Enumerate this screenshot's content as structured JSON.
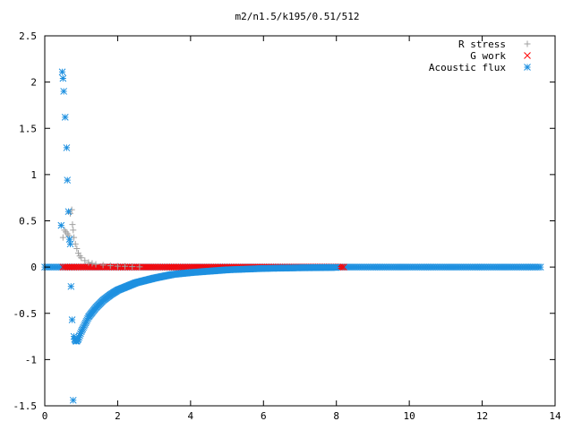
{
  "chart_data": {
    "type": "scatter",
    "title": "m2/n1.5/k195/0.51/512",
    "xlabel": "",
    "ylabel": "",
    "xlim": [
      0,
      14
    ],
    "ylim": [
      -1.5,
      2.5
    ],
    "x_ticks": [
      "0",
      "2",
      "4",
      "6",
      "8",
      "10",
      "12",
      "14"
    ],
    "y_ticks": [
      "2.5",
      "2",
      "1.5",
      "1",
      "0.5",
      "0",
      "-0.5",
      "-1",
      "-1.5"
    ],
    "grid": false,
    "legend_position": "top-right",
    "series": [
      {
        "name": "R stress",
        "marker": "plus",
        "color": "#a0a0a0",
        "x": [
          0.5,
          0.54,
          0.58,
          0.62,
          0.66,
          0.7,
          0.74,
          0.76,
          0.78,
          0.8,
          0.84,
          0.88,
          0.92,
          0.96,
          1.0,
          1.1,
          1.2,
          1.3,
          1.4,
          1.6,
          1.8,
          2.0,
          2.2,
          2.4,
          2.6
        ],
        "y": [
          0.32,
          0.4,
          0.38,
          0.36,
          0.34,
          0.58,
          0.62,
          0.46,
          0.4,
          0.32,
          0.25,
          0.2,
          0.15,
          0.12,
          0.1,
          0.07,
          0.05,
          0.04,
          0.03,
          0.02,
          0.015,
          0.01,
          0.008,
          0.005,
          0.003
        ]
      },
      {
        "name": "G work",
        "marker": "x",
        "color": "#ff0000",
        "x_range": [
          0.5,
          8.2
        ],
        "y": 0.0
      },
      {
        "name": "Acoustic flux",
        "marker": "star",
        "color": "#1e90e0",
        "x": [
          0.45,
          0.48,
          0.5,
          0.52,
          0.56,
          0.6,
          0.62,
          0.65,
          0.68,
          0.7,
          0.72,
          0.75,
          0.78,
          0.8,
          0.82,
          0.85,
          0.88,
          0.92,
          0.96,
          1.0,
          1.1,
          1.2,
          1.4,
          1.6,
          1.8,
          2.0,
          2.5,
          3.0,
          3.5,
          4.0,
          5.0,
          6.0,
          7.0,
          8.0
        ],
        "y": [
          0.45,
          2.11,
          2.04,
          1.9,
          1.62,
          1.29,
          0.94,
          0.6,
          0.3,
          0.25,
          -0.21,
          -0.57,
          -1.44,
          -0.75,
          -0.78,
          -0.8,
          -0.8,
          -0.78,
          -0.74,
          -0.7,
          -0.62,
          -0.54,
          -0.44,
          -0.36,
          -0.3,
          -0.25,
          -0.17,
          -0.12,
          -0.08,
          -0.06,
          -0.03,
          -0.015,
          -0.008,
          -0.004
        ],
        "flat_x_range": [
          0.0,
          13.6
        ],
        "flat_y": 0.0
      }
    ]
  }
}
